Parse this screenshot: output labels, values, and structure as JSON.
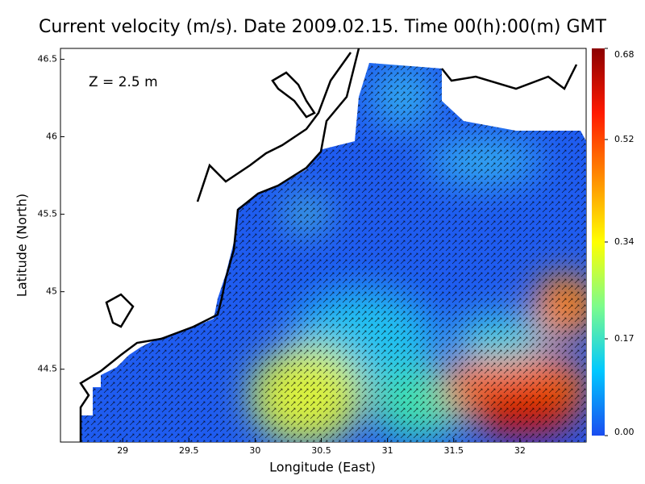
{
  "chart_data": {
    "type": "heatmap",
    "title": "Current velocity (m/s). Date 2009.02.15. Time 00(h):00(m) GMT",
    "annotation": "Z = 2.5 m",
    "x_label": "Longitude (East)",
    "y_label": "Latitude (North)",
    "xlim": [
      28.53,
      32.5
    ],
    "ylim": [
      44.03,
      46.57
    ],
    "xticks": [
      29,
      29.5,
      30,
      30.5,
      31,
      31.5,
      32
    ],
    "yticks": [
      44.5,
      45,
      45.5,
      46,
      46.5
    ],
    "colorbar": {
      "lim": [
        0,
        0.68
      ],
      "ticks": [
        {
          "value": 0,
          "label": "0.00"
        },
        0.17,
        0.34,
        0.52,
        0.68
      ],
      "colors": [
        "#1a4cf0",
        "#00c8ff",
        "#7cfc8c",
        "#ffff00",
        "#ff8c00",
        "#ff1a00",
        "#8b0000"
      ]
    }
  }
}
